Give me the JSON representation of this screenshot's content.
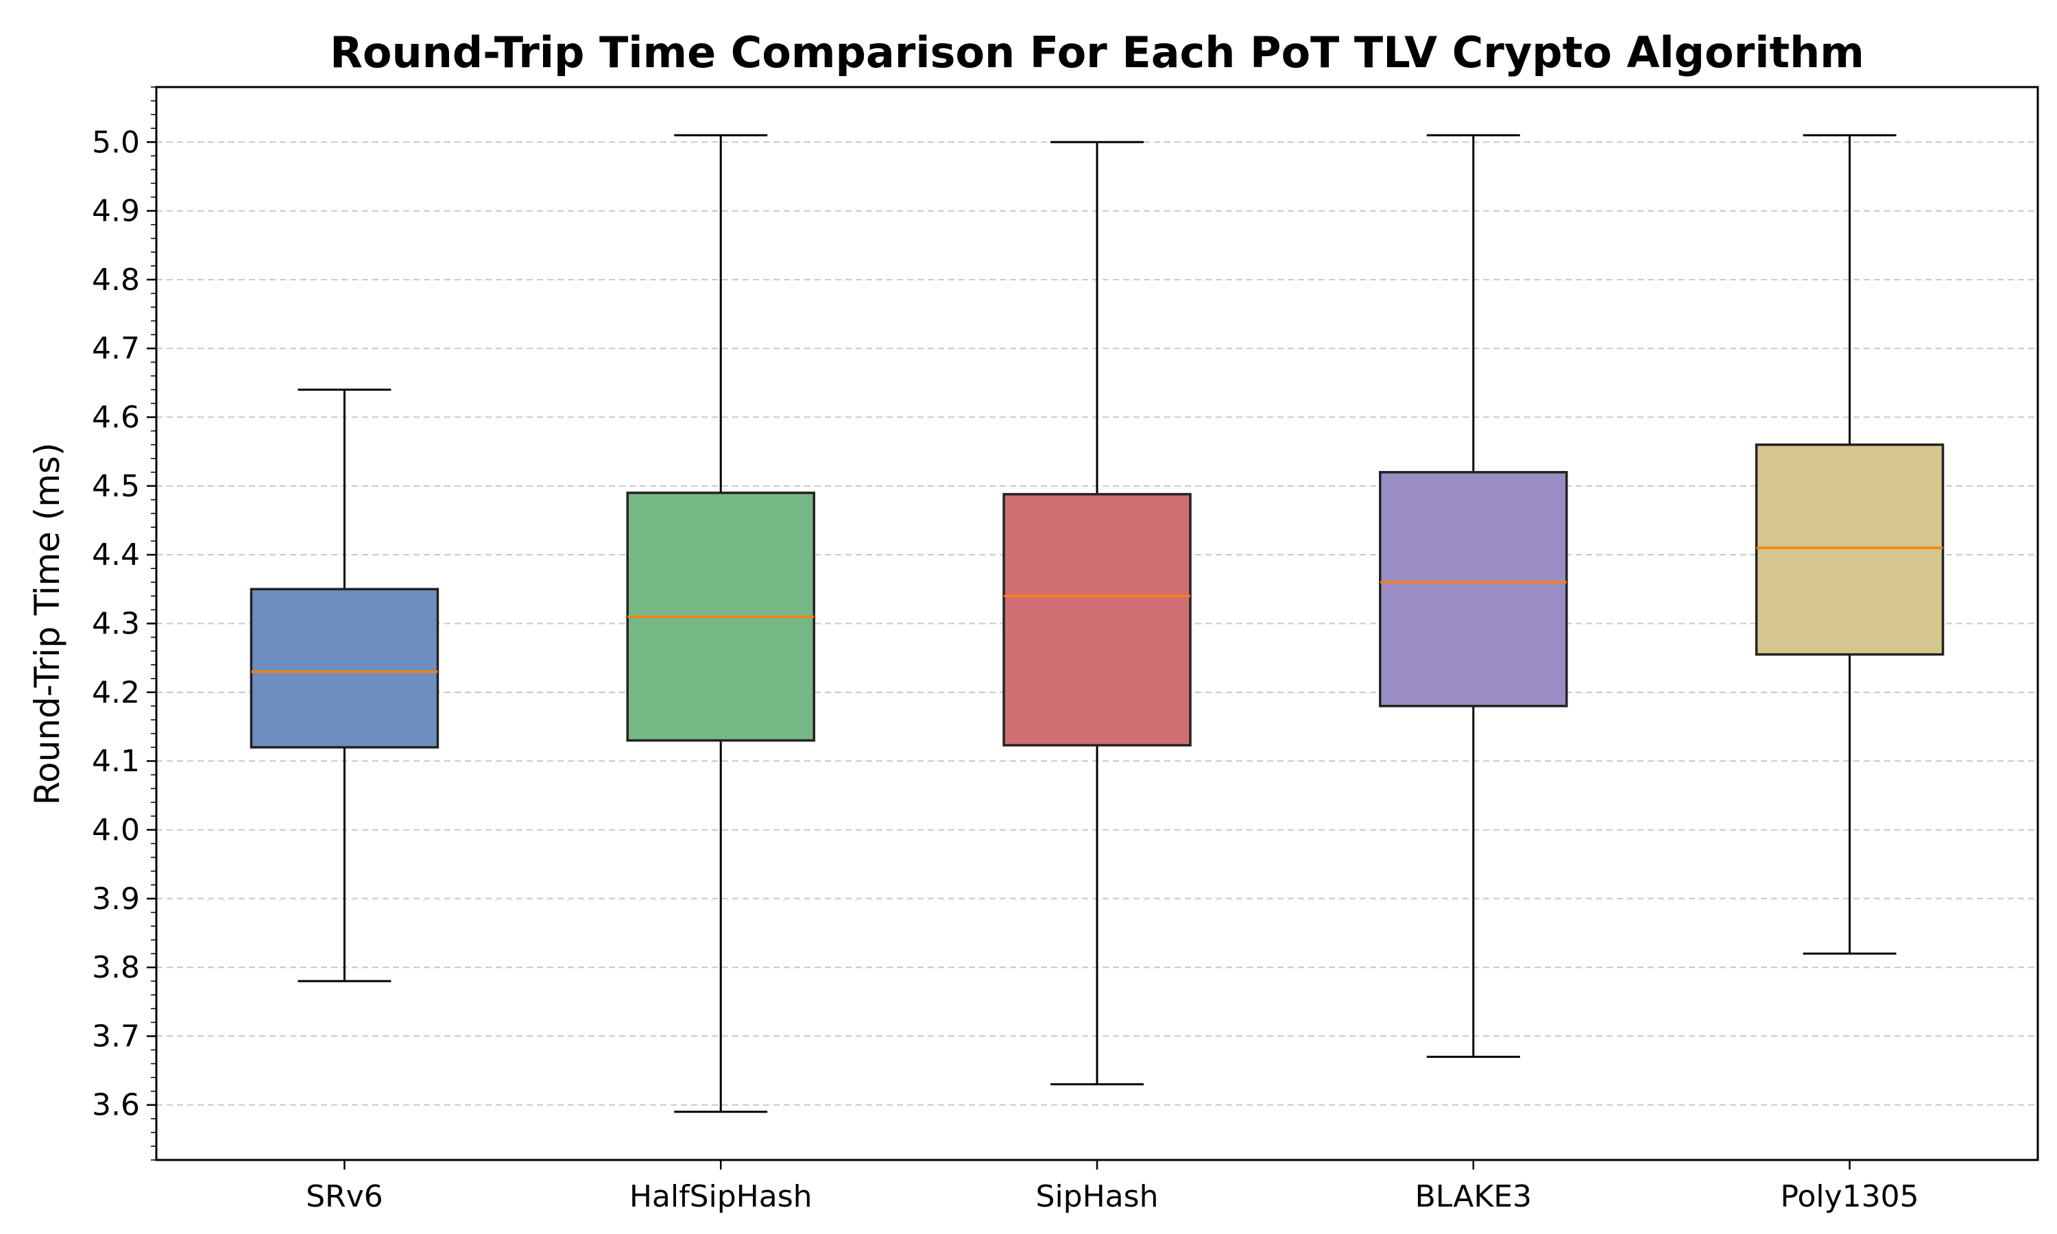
{
  "chart_data": {
    "type": "box",
    "title": "Round-Trip Time Comparison For Each PoT TLV Crypto Algorithm",
    "xlabel": "",
    "ylabel": "Round-Trip Time (ms)",
    "ylim": [
      3.52,
      5.08
    ],
    "y_ticks": [
      "3.6",
      "3.7",
      "3.8",
      "3.9",
      "4.0",
      "4.1",
      "4.2",
      "4.3",
      "4.4",
      "4.5",
      "4.6",
      "4.7",
      "4.8",
      "4.9",
      "5.0"
    ],
    "grid": "horizontal dashed",
    "legend": "none",
    "categories": [
      "SRv6",
      "HalfSipHash",
      "SipHash",
      "BLAKE3",
      "Poly1305"
    ],
    "boxes": [
      {
        "category": "SRv6",
        "whisker_low": 3.78,
        "q1": 4.12,
        "median": 4.23,
        "q3": 4.35,
        "whisker_high": 4.64,
        "color": "#6c8ebf"
      },
      {
        "category": "HalfSipHash",
        "whisker_low": 3.59,
        "q1": 4.13,
        "median": 4.31,
        "q3": 4.49,
        "whisker_high": 5.01,
        "color": "#76b786"
      },
      {
        "category": "SipHash",
        "whisker_low": 3.63,
        "q1": 4.123,
        "median": 4.34,
        "q3": 4.488,
        "whisker_high": 5.0,
        "color": "#cf6f74"
      },
      {
        "category": "BLAKE3",
        "whisker_low": 3.67,
        "q1": 4.18,
        "median": 4.36,
        "q3": 4.52,
        "whisker_high": 5.01,
        "color": "#9a8dc3"
      },
      {
        "category": "Poly1305",
        "whisker_low": 3.82,
        "q1": 4.255,
        "median": 4.41,
        "q3": 4.56,
        "whisker_high": 5.01,
        "color": "#d5c68f"
      }
    ],
    "median_color": "#ff7f0e",
    "edge_color": "#222222"
  }
}
